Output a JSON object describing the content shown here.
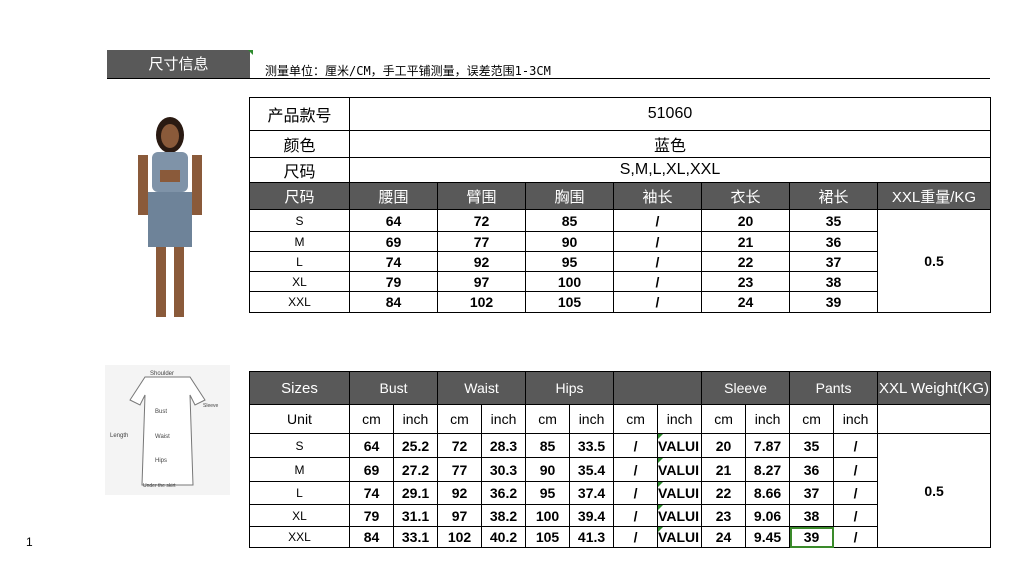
{
  "section_title": "尺寸信息",
  "note": "测量单位：厘米/CM，手工平铺测量，误差范围1-3CM",
  "page_number": "1",
  "cn_table": {
    "product_label": "产品款号",
    "product_value": "51060",
    "color_label": "颜色",
    "color_value": "蓝色",
    "size_label": "尺码",
    "size_value": "S,M,L,XL,XXL",
    "headers": [
      "尺码",
      "腰围",
      "臂围",
      "胸围",
      "袖长",
      "衣长",
      "裙长",
      "XXL重量/KG"
    ],
    "rows": [
      [
        "S",
        "64",
        "72",
        "85",
        "/",
        "20",
        "35"
      ],
      [
        "M",
        "69",
        "77",
        "90",
        "/",
        "21",
        "36"
      ],
      [
        "L",
        "74",
        "92",
        "95",
        "/",
        "22",
        "37"
      ],
      [
        "XL",
        "79",
        "97",
        "100",
        "/",
        "23",
        "38"
      ],
      [
        "XXL",
        "84",
        "102",
        "105",
        "/",
        "24",
        "39"
      ]
    ],
    "weight": "0.5"
  },
  "en_table": {
    "headers": [
      "Sizes",
      "Bust",
      "Waist",
      "Hips",
      "",
      "Sleeve",
      "Pants",
      "XXL Weight(KG)"
    ],
    "unit_label": "Unit",
    "units": [
      "cm",
      "inch",
      "cm",
      "inch",
      "cm",
      "inch",
      "cm",
      "inch",
      "cm",
      "inch",
      "cm",
      "inch"
    ],
    "rows": [
      [
        "S",
        "64",
        "25.2",
        "72",
        "28.3",
        "85",
        "33.5",
        "/",
        "VALUI",
        "20",
        "7.87",
        "35",
        "/"
      ],
      [
        "M",
        "69",
        "27.2",
        "77",
        "30.3",
        "90",
        "35.4",
        "/",
        "VALUI",
        "21",
        "8.27",
        "36",
        "/"
      ],
      [
        "L",
        "74",
        "29.1",
        "92",
        "36.2",
        "95",
        "37.4",
        "/",
        "VALUI",
        "22",
        "8.66",
        "37",
        "/"
      ],
      [
        "XL",
        "79",
        "31.1",
        "97",
        "38.2",
        "100",
        "39.4",
        "/",
        "VALUI",
        "23",
        "9.06",
        "38",
        "/"
      ],
      [
        "XXL",
        "84",
        "33.1",
        "102",
        "40.2",
        "105",
        "41.3",
        "/",
        "VALUI",
        "24",
        "9.45",
        "39",
        "/"
      ]
    ],
    "weight": "0.5"
  },
  "diagram_labels": [
    "Shoulder",
    "Sleeve",
    "Bust",
    "Waist",
    "Hips",
    "Length",
    "Under the skirt"
  ]
}
